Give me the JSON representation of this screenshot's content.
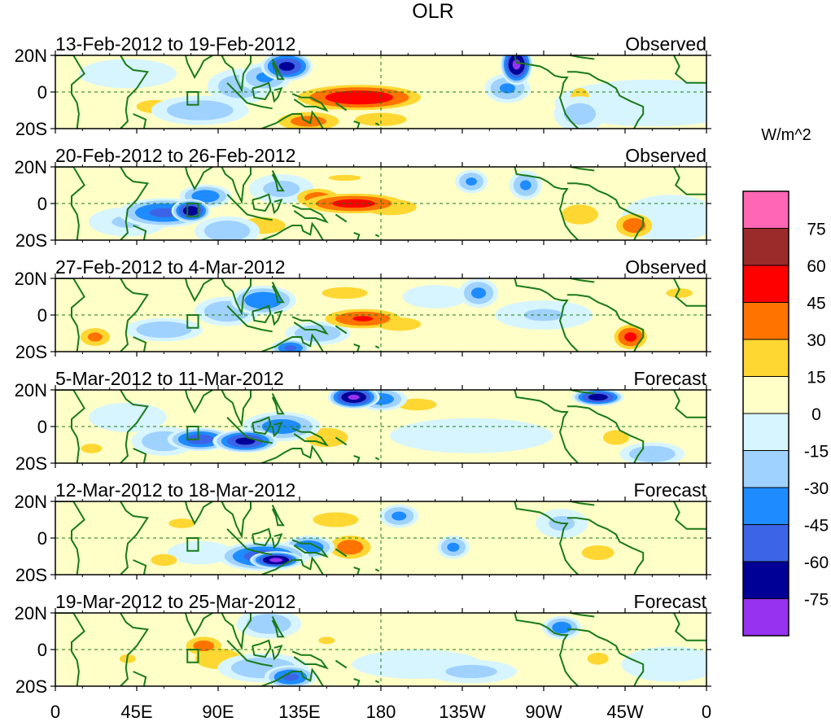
{
  "chart_data": {
    "type": "heatmap",
    "title": "OLR",
    "colorbar": {
      "unit_label": "W/m^2",
      "tick_labels": [
        "75",
        "60",
        "45",
        "30",
        "15",
        "0",
        "-15",
        "-30",
        "-45",
        "-60",
        "-75"
      ],
      "bins": [
        {
          "range": [
            75,
            90
          ],
          "color": "#ff66b3"
        },
        {
          "range": [
            60,
            75
          ],
          "color": "#9b2a2a"
        },
        {
          "range": [
            45,
            60
          ],
          "color": "#ff0000"
        },
        {
          "range": [
            30,
            45
          ],
          "color": "#ff7300"
        },
        {
          "range": [
            15,
            30
          ],
          "color": "#ffd732"
        },
        {
          "range": [
            0,
            15
          ],
          "color": "#ffffc8"
        },
        {
          "range": [
            -15,
            0
          ],
          "color": "#d7f5ff"
        },
        {
          "range": [
            -30,
            -15
          ],
          "color": "#a0d2ff"
        },
        {
          "range": [
            -45,
            -30
          ],
          "color": "#1e8cff"
        },
        {
          "range": [
            -60,
            -45
          ],
          "color": "#3c64e6"
        },
        {
          "range": [
            -75,
            -60
          ],
          "color": "#000096"
        },
        {
          "range": [
            -90,
            -75
          ],
          "color": "#9632f0"
        }
      ]
    },
    "x_axis": {
      "range_deg_east": [
        0,
        360
      ],
      "ticks": [
        {
          "lon": 0,
          "label": "0"
        },
        {
          "lon": 45,
          "label": "45E"
        },
        {
          "lon": 90,
          "label": "90E"
        },
        {
          "lon": 135,
          "label": "135E"
        },
        {
          "lon": 180,
          "label": "180"
        },
        {
          "lon": 225,
          "label": "135W"
        },
        {
          "lon": 270,
          "label": "90W"
        },
        {
          "lon": 315,
          "label": "45W"
        },
        {
          "lon": 360,
          "label": "0"
        }
      ]
    },
    "y_axis": {
      "range_deg_north": [
        -20,
        20
      ],
      "ticks": [
        {
          "lat": 20,
          "label": "20N"
        },
        {
          "lat": 0,
          "label": "0"
        },
        {
          "lat": -20,
          "label": "20S"
        }
      ]
    },
    "reference_lines": {
      "equator_lat": 0,
      "dateline_lon": 180
    },
    "region_box": {
      "lon": [
        73,
        79
      ],
      "lat": [
        -7,
        0
      ]
    },
    "panels": [
      {
        "period": "13-Feb-2012 to 19-Feb-2012",
        "kind": "Observed",
        "anomalies": [
          {
            "lon": 168,
            "lat": -3,
            "slon": 22,
            "slat": 5,
            "value": 58
          },
          {
            "lon": 153,
            "lat": -6,
            "slon": 10,
            "slat": 4,
            "value": 22
          },
          {
            "lon": 140,
            "lat": -16,
            "slon": 12,
            "slat": 4,
            "value": 38
          },
          {
            "lon": 180,
            "lat": -15,
            "slon": 14,
            "slat": 4,
            "value": 22
          },
          {
            "lon": 55,
            "lat": -8,
            "slon": 10,
            "slat": 4,
            "value": 22
          },
          {
            "lon": 25,
            "lat": -4,
            "slon": 8,
            "slat": 3,
            "value": 14
          },
          {
            "lon": 128,
            "lat": 14,
            "slon": 8,
            "slat": 5,
            "value": -66
          },
          {
            "lon": 116,
            "lat": 8,
            "slon": 8,
            "slat": 5,
            "value": -34
          },
          {
            "lon": 255,
            "lat": 15,
            "slon": 5,
            "slat": 7,
            "value": -80
          },
          {
            "lon": 250,
            "lat": 2,
            "slon": 7,
            "slat": 5,
            "value": -34
          },
          {
            "lon": 80,
            "lat": -10,
            "slon": 15,
            "slat": 5,
            "value": -28
          },
          {
            "lon": 102,
            "lat": 3,
            "slon": 10,
            "slat": 6,
            "value": -27
          },
          {
            "lon": 290,
            "lat": -3,
            "slon": 7,
            "slat": 8,
            "value": 18
          },
          {
            "lon": 290,
            "lat": -12,
            "slon": 8,
            "slat": 6,
            "value": -24
          },
          {
            "lon": 330,
            "lat": -6,
            "slon": 30,
            "slat": 8,
            "value": -12
          },
          {
            "lon": 220,
            "lat": -12,
            "slon": 20,
            "slat": 5,
            "value": 8
          },
          {
            "lon": 40,
            "lat": 10,
            "slon": 15,
            "slat": 5,
            "value": -10
          }
        ]
      },
      {
        "period": "20-Feb-2012 to 26-Feb-2012",
        "kind": "Observed",
        "anomalies": [
          {
            "lon": 165,
            "lat": 0,
            "slon": 18,
            "slat": 4,
            "value": 52
          },
          {
            "lon": 145,
            "lat": 3,
            "slon": 8,
            "slat": 4,
            "value": 40
          },
          {
            "lon": 185,
            "lat": -2,
            "slon": 12,
            "slat": 4,
            "value": 28
          },
          {
            "lon": 75,
            "lat": -4,
            "slon": 6,
            "slat": 4,
            "value": -72
          },
          {
            "lon": 60,
            "lat": -5,
            "slon": 14,
            "slat": 5,
            "value": -50
          },
          {
            "lon": 83,
            "lat": 4,
            "slon": 8,
            "slat": 4,
            "value": -42
          },
          {
            "lon": 40,
            "lat": -10,
            "slon": 12,
            "slat": 5,
            "value": -18
          },
          {
            "lon": 95,
            "lat": -15,
            "slon": 10,
            "slat": 5,
            "value": -30
          },
          {
            "lon": 125,
            "lat": 8,
            "slon": 10,
            "slat": 5,
            "value": -22
          },
          {
            "lon": 115,
            "lat": -12,
            "slon": 12,
            "slat": 5,
            "value": 22
          },
          {
            "lon": 230,
            "lat": 12,
            "slon": 5,
            "slat": 4,
            "value": -34
          },
          {
            "lon": 260,
            "lat": 10,
            "slon": 5,
            "slat": 5,
            "value": -34
          },
          {
            "lon": 290,
            "lat": -6,
            "slon": 10,
            "slat": 6,
            "value": 22
          },
          {
            "lon": 320,
            "lat": -12,
            "slon": 7,
            "slat": 5,
            "value": 40
          },
          {
            "lon": 160,
            "lat": 14,
            "slon": 20,
            "slat": 4,
            "value": 16
          },
          {
            "lon": 340,
            "lat": -8,
            "slon": 15,
            "slat": 8,
            "value": -12
          }
        ]
      },
      {
        "period": "27-Feb-2012 to 4-Mar-2012",
        "kind": "Observed",
        "anomalies": [
          {
            "lon": 170,
            "lat": -2,
            "slon": 14,
            "slat": 4,
            "value": 47
          },
          {
            "lon": 190,
            "lat": -5,
            "slon": 12,
            "slat": 4,
            "value": 22
          },
          {
            "lon": 160,
            "lat": 12,
            "slon": 14,
            "slat": 4,
            "value": 20
          },
          {
            "lon": 318,
            "lat": -12,
            "slon": 6,
            "slat": 5,
            "value": 50
          },
          {
            "lon": 22,
            "lat": -12,
            "slon": 6,
            "slat": 4,
            "value": 35
          },
          {
            "lon": 115,
            "lat": 8,
            "slon": 10,
            "slat": 5,
            "value": -45
          },
          {
            "lon": 95,
            "lat": 2,
            "slon": 10,
            "slat": 5,
            "value": -30
          },
          {
            "lon": 145,
            "lat": -10,
            "slon": 10,
            "slat": 4,
            "value": -30
          },
          {
            "lon": 60,
            "lat": -8,
            "slon": 12,
            "slat": 4,
            "value": -30
          },
          {
            "lon": 130,
            "lat": -18,
            "slon": 6,
            "slat": 3,
            "value": -50
          },
          {
            "lon": 234,
            "lat": 12,
            "slon": 6,
            "slat": 5,
            "value": -35
          },
          {
            "lon": 210,
            "lat": 10,
            "slon": 10,
            "slat": 4,
            "value": -15
          },
          {
            "lon": 270,
            "lat": 0,
            "slon": 15,
            "slat": 5,
            "value": -18
          },
          {
            "lon": 345,
            "lat": 12,
            "slon": 10,
            "slat": 4,
            "value": 18
          },
          {
            "lon": 300,
            "lat": 10,
            "slon": 15,
            "slat": 4,
            "value": 10
          }
        ]
      },
      {
        "period": "5-Mar-2012 to 11-Mar-2012",
        "kind": "Forecast",
        "anomalies": [
          {
            "lon": 80,
            "lat": -7,
            "slon": 10,
            "slat": 4,
            "value": -55
          },
          {
            "lon": 105,
            "lat": -8,
            "slon": 10,
            "slat": 4,
            "value": -66
          },
          {
            "lon": 60,
            "lat": -8,
            "slon": 10,
            "slat": 5,
            "value": -28
          },
          {
            "lon": 125,
            "lat": 0,
            "slon": 12,
            "slat": 5,
            "value": -40
          },
          {
            "lon": 165,
            "lat": 16,
            "slon": 8,
            "slat": 4,
            "value": -78
          },
          {
            "lon": 180,
            "lat": 15,
            "slon": 8,
            "slat": 4,
            "value": -40
          },
          {
            "lon": 150,
            "lat": -6,
            "slon": 10,
            "slat": 5,
            "value": 26
          },
          {
            "lon": 200,
            "lat": 12,
            "slon": 12,
            "slat": 4,
            "value": 20
          },
          {
            "lon": 300,
            "lat": 16,
            "slon": 8,
            "slat": 3,
            "value": -70
          },
          {
            "lon": 310,
            "lat": -6,
            "slon": 8,
            "slat": 5,
            "value": 20
          },
          {
            "lon": 330,
            "lat": -15,
            "slon": 10,
            "slat": 4,
            "value": -30
          },
          {
            "lon": 40,
            "lat": 5,
            "slon": 12,
            "slat": 5,
            "value": -12
          },
          {
            "lon": 230,
            "lat": -5,
            "slon": 25,
            "slat": 6,
            "value": -10
          },
          {
            "lon": 20,
            "lat": -12,
            "slon": 8,
            "slat": 4,
            "value": 18
          }
        ]
      },
      {
        "period": "12-Mar-2012 to 18-Mar-2012",
        "kind": "Forecast",
        "anomalies": [
          {
            "lon": 122,
            "lat": -12,
            "slon": 8,
            "slat": 3,
            "value": -80
          },
          {
            "lon": 115,
            "lat": -10,
            "slon": 14,
            "slat": 5,
            "value": -55
          },
          {
            "lon": 140,
            "lat": -5,
            "slon": 8,
            "slat": 4,
            "value": -45
          },
          {
            "lon": 163,
            "lat": -5,
            "slon": 8,
            "slat": 5,
            "value": 40
          },
          {
            "lon": 155,
            "lat": 10,
            "slon": 14,
            "slat": 5,
            "value": 20
          },
          {
            "lon": 190,
            "lat": 12,
            "slon": 6,
            "slat": 4,
            "value": -35
          },
          {
            "lon": 220,
            "lat": -5,
            "slon": 5,
            "slat": 4,
            "value": -35
          },
          {
            "lon": 70,
            "lat": 8,
            "slon": 10,
            "slat": 4,
            "value": 18
          },
          {
            "lon": 60,
            "lat": -12,
            "slon": 8,
            "slat": 4,
            "value": 20
          },
          {
            "lon": 80,
            "lat": -8,
            "slon": 10,
            "slat": 4,
            "value": -15
          },
          {
            "lon": 280,
            "lat": 8,
            "slon": 8,
            "slat": 5,
            "value": -20
          },
          {
            "lon": 300,
            "lat": -8,
            "slon": 10,
            "slat": 5,
            "value": 20
          },
          {
            "lon": 330,
            "lat": 10,
            "slon": 12,
            "slat": 4,
            "value": 10
          },
          {
            "lon": 240,
            "lat": 12,
            "slon": 12,
            "slat": 4,
            "value": 12
          }
        ]
      },
      {
        "period": "19-Mar-2012 to 25-Mar-2012",
        "kind": "Forecast",
        "anomalies": [
          {
            "lon": 82,
            "lat": 2,
            "slon": 7,
            "slat": 4,
            "value": 38
          },
          {
            "lon": 90,
            "lat": -5,
            "slon": 14,
            "slat": 7,
            "value": 20
          },
          {
            "lon": 130,
            "lat": -15,
            "slon": 8,
            "slat": 4,
            "value": -50
          },
          {
            "lon": 115,
            "lat": -10,
            "slon": 14,
            "slat": 5,
            "value": -30
          },
          {
            "lon": 118,
            "lat": 14,
            "slon": 10,
            "slat": 5,
            "value": -28
          },
          {
            "lon": 150,
            "lat": 5,
            "slon": 10,
            "slat": 5,
            "value": 16
          },
          {
            "lon": 200,
            "lat": -8,
            "slon": 20,
            "slat": 5,
            "value": -12
          },
          {
            "lon": 230,
            "lat": -12,
            "slon": 14,
            "slat": 4,
            "value": -22
          },
          {
            "lon": 280,
            "lat": 12,
            "slon": 6,
            "slat": 4,
            "value": -40
          },
          {
            "lon": 300,
            "lat": -5,
            "slon": 8,
            "slat": 5,
            "value": 18
          },
          {
            "lon": 40,
            "lat": -5,
            "slon": 10,
            "slat": 6,
            "value": 16
          },
          {
            "lon": 25,
            "lat": 5,
            "slon": 8,
            "slat": 4,
            "value": 12
          },
          {
            "lon": 340,
            "lat": -8,
            "slon": 15,
            "slat": 6,
            "value": -12
          }
        ]
      }
    ]
  }
}
